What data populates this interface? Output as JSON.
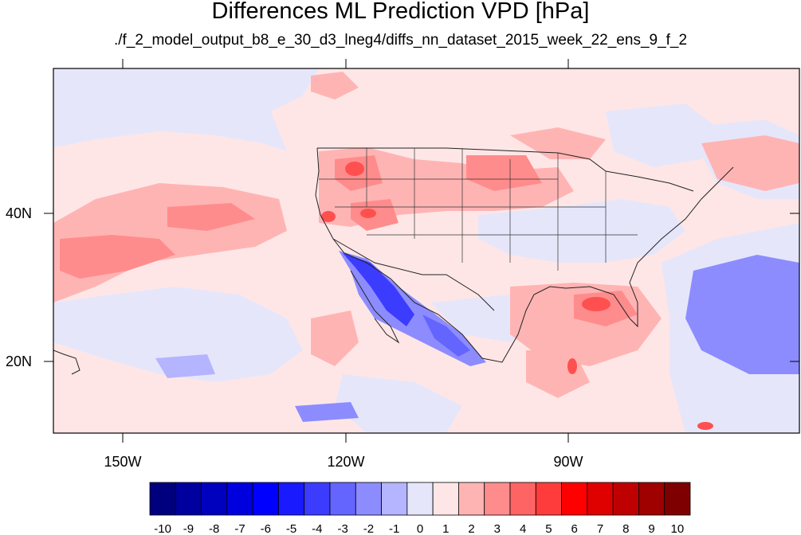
{
  "title": "Differences ML Prediction VPD [hPa]",
  "subtitle": "./f_2_model_output_b8_e_30_d3_lneg4/diffs_nn_dataset_2015_week_22_ens_9_f_2",
  "lon_labels": [
    "150W",
    "120W",
    "90W"
  ],
  "lat_labels": [
    "40N",
    "20N"
  ],
  "colorbar": {
    "labels": [
      "-10",
      "-9",
      "-8",
      "-7",
      "-6",
      "-5",
      "-4",
      "-3",
      "-2",
      "-1",
      "0",
      "1",
      "2",
      "3",
      "4",
      "5",
      "6",
      "7",
      "8",
      "9",
      "10"
    ],
    "colors": [
      "#00007f",
      "#00009f",
      "#0000bf",
      "#0000df",
      "#0000ff",
      "#1a1aff",
      "#3c3cff",
      "#6464ff",
      "#8c8cff",
      "#b4b4ff",
      "#e6e6fa",
      "#ffe6e6",
      "#ffb4b4",
      "#ff8c8c",
      "#ff6464",
      "#ff3c3c",
      "#ff0000",
      "#df0000",
      "#bf0000",
      "#9f0000",
      "#7f0000"
    ]
  }
}
